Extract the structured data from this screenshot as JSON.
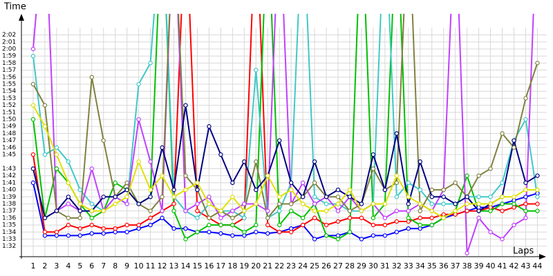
{
  "chart_data": {
    "type": "line",
    "ylabel": "Time",
    "xlabel": "Laps",
    "x": [
      1,
      2,
      3,
      4,
      5,
      6,
      7,
      8,
      9,
      10,
      11,
      12,
      13,
      14,
      15,
      16,
      17,
      18,
      19,
      20,
      21,
      22,
      23,
      24,
      25,
      26,
      27,
      28,
      29,
      30,
      31,
      32,
      33,
      34,
      35,
      36,
      37,
      38,
      39,
      40,
      41,
      42,
      43,
      44
    ],
    "xticks": [
      1,
      2,
      3,
      4,
      5,
      6,
      7,
      8,
      9,
      10,
      11,
      12,
      13,
      14,
      15,
      16,
      17,
      18,
      19,
      20,
      21,
      22,
      23,
      24,
      25,
      26,
      27,
      28,
      29,
      30,
      31,
      32,
      33,
      34,
      35,
      36,
      37,
      38,
      39,
      40,
      41,
      42,
      43,
      44
    ],
    "xlim": [
      0,
      44.8
    ],
    "ylim": [
      90.5,
      125
    ],
    "yticks": [
      {
        "value": 92,
        "label": "1:32"
      },
      {
        "value": 93,
        "label": "1:33"
      },
      {
        "value": 94,
        "label": "1:34"
      },
      {
        "value": 95,
        "label": "1:35"
      },
      {
        "value": 96,
        "label": "1:36"
      },
      {
        "value": 97,
        "label": "1:37"
      },
      {
        "value": 98,
        "label": "1:38"
      },
      {
        "value": 99,
        "label": "1:39"
      },
      {
        "value": 100,
        "label": "1:40"
      },
      {
        "value": 101,
        "label": "1:41"
      },
      {
        "value": 102,
        "label": "1:42"
      },
      {
        "value": 103,
        "label": "1:43"
      },
      {
        "value": 105,
        "label": "1:45"
      },
      {
        "value": 106,
        "label": "1:46"
      },
      {
        "value": 107,
        "label": "1:47"
      },
      {
        "value": 108,
        "label": "1:48"
      },
      {
        "value": 109,
        "label": "1:49"
      },
      {
        "value": 110,
        "label": "1:50"
      },
      {
        "value": 111,
        "label": "1:51"
      },
      {
        "value": 112,
        "label": "1:52"
      },
      {
        "value": 113,
        "label": "1:53"
      },
      {
        "value": 114,
        "label": "1:54"
      },
      {
        "value": 115,
        "label": "1:55"
      },
      {
        "value": 116,
        "label": "1:56"
      },
      {
        "value": 117,
        "label": "1:57"
      },
      {
        "value": 118,
        "label": "1:58"
      },
      {
        "value": 119,
        "label": "1:59"
      },
      {
        "value": 120,
        "label": "2:00"
      },
      {
        "value": 121,
        "label": "2:01"
      },
      {
        "value": 122,
        "label": "2:02"
      }
    ],
    "grid": true,
    "series": [
      {
        "color": "#0000ff",
        "values": [
          101,
          93.5,
          93.5,
          93.5,
          93.5,
          93.8,
          93.8,
          94,
          94,
          94.5,
          95,
          96,
          94.5,
          94.5,
          94,
          94,
          93.8,
          93.5,
          93.5,
          94,
          93.8,
          94,
          94.5,
          95,
          93,
          93.5,
          93.5,
          94,
          93,
          93.5,
          93.5,
          94,
          94.5,
          94.5,
          95,
          96,
          96.5,
          97,
          97.5,
          97.5,
          98,
          98.5,
          99,
          99.5
        ]
      },
      {
        "color": "#ff0000",
        "values": [
          105,
          94,
          94,
          95,
          94.5,
          95,
          94.5,
          94.5,
          95,
          95,
          96,
          97,
          98,
          140,
          97,
          96,
          95,
          95,
          96,
          140,
          95,
          94,
          94,
          95,
          96,
          95,
          95.5,
          96,
          96,
          95,
          95,
          95.5,
          95.5,
          96,
          96,
          96.5,
          96.5,
          97,
          97,
          97.5,
          97,
          97.5,
          98,
          98
        ]
      },
      {
        "color": "#00c000",
        "values": [
          110,
          96,
          103,
          101,
          98,
          96,
          97,
          101,
          100,
          98,
          99,
          140,
          97,
          93,
          94,
          95,
          95,
          95,
          94,
          95,
          140,
          95,
          97,
          96,
          98,
          93.5,
          93,
          94,
          140,
          96,
          98,
          140,
          96,
          95,
          95,
          96,
          97,
          102,
          97,
          97,
          98,
          98,
          97,
          97
        ]
      },
      {
        "color": "#40c8c8",
        "values": [
          119,
          105,
          106,
          104,
          100,
          98,
          97,
          99,
          98,
          115,
          118,
          140,
          99,
          97,
          96,
          98,
          97,
          97,
          96,
          117,
          96,
          97,
          101,
          140,
          99,
          98,
          98,
          97,
          97,
          98,
          140,
          99,
          101,
          100,
          98,
          98,
          98,
          99,
          99,
          99,
          101,
          107,
          110,
          99
        ]
      },
      {
        "color": "#c040ff",
        "values": [
          120,
          140,
          97,
          98,
          97,
          103,
          97,
          99,
          98,
          110,
          104,
          97,
          140,
          97,
          98,
          99,
          96,
          97,
          98,
          98,
          97,
          140,
          98,
          101,
          98,
          99,
          97,
          99,
          97,
          98,
          96,
          97,
          97,
          98,
          97,
          100,
          140,
          91,
          96,
          94,
          93,
          95,
          96,
          140
        ]
      },
      {
        "color": "#808040",
        "values": [
          115,
          112,
          97,
          96,
          96,
          116,
          107,
          99,
          101,
          98,
          97,
          99,
          140,
          102,
          100,
          96,
          97,
          96,
          97,
          104,
          96,
          98,
          98,
          99,
          101,
          99,
          99,
          97,
          98,
          103,
          100,
          101,
          140,
          97,
          100,
          100,
          101,
          99,
          102,
          103,
          108,
          106,
          113,
          118
        ]
      },
      {
        "color": "#000080",
        "values": [
          103,
          96,
          97,
          99,
          97,
          97,
          99,
          99,
          100,
          98,
          99,
          106,
          100,
          112,
          100,
          109,
          105,
          101,
          104,
          100,
          102,
          107,
          101,
          99,
          104,
          99,
          100,
          99,
          98,
          105,
          100,
          108,
          98,
          104,
          99,
          99,
          98,
          99,
          97,
          98,
          99,
          107,
          101,
          102
        ]
      },
      {
        "color": "#e0e000",
        "values": [
          112,
          109,
          105,
          101,
          98,
          97,
          97,
          98,
          99,
          104,
          100,
          102,
          99,
          100,
          101,
          98,
          97,
          99,
          97,
          98,
          102,
          99,
          100,
          98,
          97,
          97,
          98,
          100,
          97,
          98,
          98,
          102,
          99,
          98,
          97,
          96,
          97,
          98,
          98,
          98,
          99,
          99,
          100,
          100
        ]
      }
    ]
  }
}
